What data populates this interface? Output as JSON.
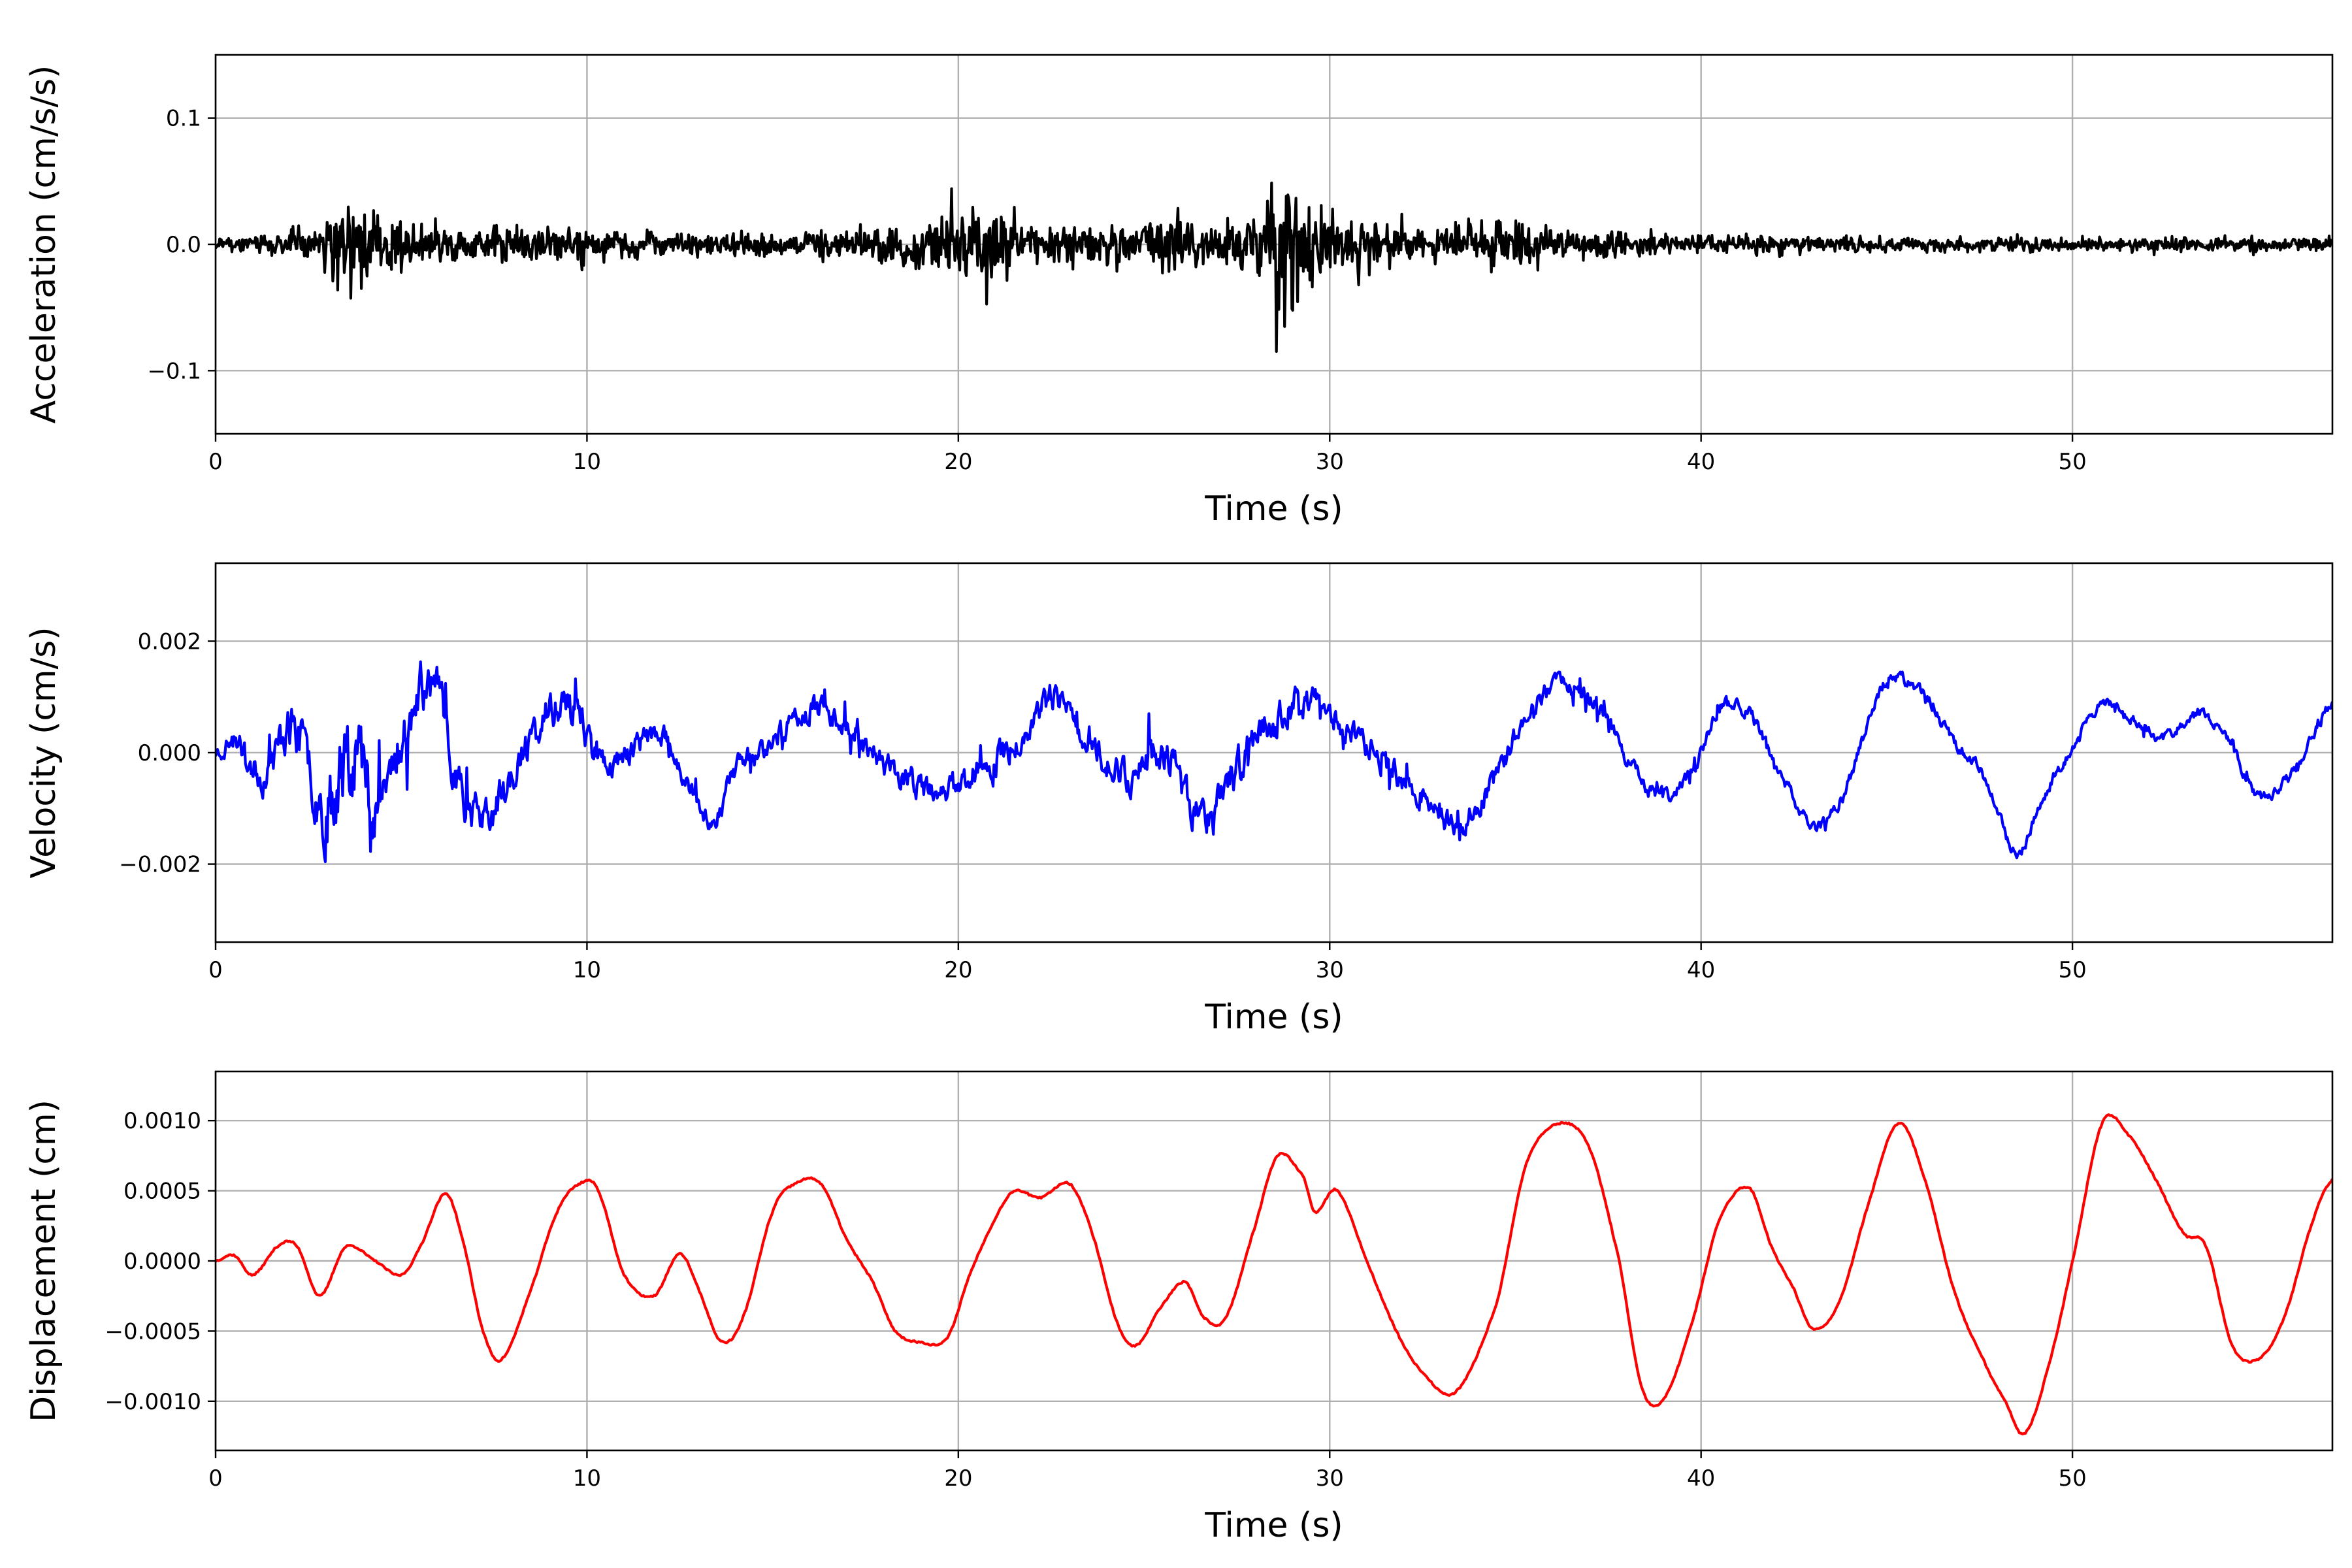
{
  "chart_data": [
    {
      "type": "line",
      "title": "",
      "xlabel": "Time (s)",
      "ylabel": "Acceleration (cm/s/s)",
      "xlim": [
        0,
        57
      ],
      "ylim": [
        -0.15,
        0.15
      ],
      "xticks": [
        0,
        10,
        20,
        30,
        40,
        50
      ],
      "yticks": [
        -0.1,
        0.0,
        0.1
      ],
      "ytick_labels": [
        "−0.1",
        "0.0",
        "0.1"
      ],
      "grid": true,
      "color": "#000000",
      "series_kind": "noise",
      "envelope": [
        [
          0,
          0.01
        ],
        [
          1.5,
          0.015
        ],
        [
          2.5,
          0.035
        ],
        [
          3.2,
          0.055
        ],
        [
          3.6,
          0.11
        ],
        [
          4.0,
          0.07
        ],
        [
          5.5,
          0.035
        ],
        [
          7.5,
          0.025
        ],
        [
          9.5,
          0.03
        ],
        [
          11,
          0.02
        ],
        [
          14,
          0.018
        ],
        [
          16,
          0.02
        ],
        [
          17.5,
          0.025
        ],
        [
          19.3,
          0.05
        ],
        [
          19.8,
          0.075
        ],
        [
          21.5,
          0.045
        ],
        [
          22.3,
          0.035
        ],
        [
          24,
          0.03
        ],
        [
          25.7,
          0.045
        ],
        [
          27,
          0.035
        ],
        [
          28.3,
          0.05
        ],
        [
          28.7,
          0.135
        ],
        [
          29.1,
          0.11
        ],
        [
          30,
          0.05
        ],
        [
          32,
          0.03
        ],
        [
          34,
          0.03
        ],
        [
          35.3,
          0.045
        ],
        [
          36,
          0.025
        ],
        [
          38,
          0.018
        ],
        [
          40,
          0.015
        ],
        [
          45,
          0.012
        ],
        [
          50,
          0.012
        ],
        [
          55,
          0.012
        ],
        [
          57,
          0.012
        ]
      ],
      "points": 2600,
      "seed": 11
    },
    {
      "type": "line",
      "title": "",
      "xlabel": "Time (s)",
      "ylabel": "Velocity (cm/s)",
      "xlim": [
        0,
        57
      ],
      "ylim": [
        -0.0034,
        0.0034
      ],
      "xticks": [
        0,
        10,
        20,
        30,
        40,
        50
      ],
      "yticks": [
        -0.002,
        0.0,
        0.002
      ],
      "ytick_labels": [
        "−0.002",
        "0.000",
        "0.002"
      ],
      "grid": true,
      "color": "#0000ff",
      "series_kind": "trend_noise",
      "trend": [
        [
          0,
          0
        ],
        [
          0.5,
          0.0002
        ],
        [
          1.3,
          -0.0004
        ],
        [
          2.0,
          0.0005
        ],
        [
          2.5,
          -0.0002
        ],
        [
          3.0,
          -0.001
        ],
        [
          3.6,
          0.0003
        ],
        [
          4.3,
          -0.0008
        ],
        [
          5.0,
          0.0002
        ],
        [
          5.8,
          0.0013
        ],
        [
          6.5,
          -0.0004
        ],
        [
          7.2,
          -0.0012
        ],
        [
          8.0,
          -0.0004
        ],
        [
          9.0,
          0.0007
        ],
        [
          9.6,
          0.0008
        ],
        [
          10.5,
          -0.0002
        ],
        [
          12.0,
          0.0003
        ],
        [
          13.3,
          -0.0012
        ],
        [
          14.0,
          -0.0003
        ],
        [
          15.0,
          0.0002
        ],
        [
          16.0,
          0.0008
        ],
        [
          17.0,
          0.0005
        ],
        [
          18.0,
          -0.0002
        ],
        [
          19.5,
          -0.0007
        ],
        [
          20.5,
          -0.0003
        ],
        [
          21.5,
          0.0001
        ],
        [
          22.5,
          0.0009
        ],
        [
          23.5,
          0.0003
        ],
        [
          24.5,
          -0.0004
        ],
        [
          25.5,
          0.0
        ],
        [
          26.5,
          -0.0011
        ],
        [
          27.5,
          -0.0003
        ],
        [
          28.5,
          0.0006
        ],
        [
          29.5,
          0.0009
        ],
        [
          30.5,
          0.0004
        ],
        [
          31.5,
          -0.0002
        ],
        [
          32.5,
          -0.0008
        ],
        [
          33.5,
          -0.0013
        ],
        [
          34.5,
          -0.0004
        ],
        [
          35.5,
          0.0009
        ],
        [
          36.5,
          0.0012
        ],
        [
          37.5,
          0.0006
        ],
        [
          38.2,
          -0.0003
        ],
        [
          39.0,
          -0.0008
        ],
        [
          39.8,
          -0.0003
        ],
        [
          40.5,
          0.0008
        ],
        [
          41.3,
          0.0007
        ],
        [
          42.0,
          -0.0002
        ],
        [
          43.0,
          -0.0013
        ],
        [
          43.8,
          -0.0008
        ],
        [
          44.5,
          0.0005
        ],
        [
          45.0,
          0.0013
        ],
        [
          46.0,
          0.0011
        ],
        [
          46.8,
          0.0002
        ],
        [
          47.6,
          -0.0004
        ],
        [
          48.5,
          -0.0018
        ],
        [
          49.2,
          -0.0008
        ],
        [
          50.0,
          0.0001
        ],
        [
          50.8,
          0.0009
        ],
        [
          51.5,
          0.0006
        ],
        [
          52.5,
          0.0003
        ],
        [
          53.5,
          0.0007
        ],
        [
          54.3,
          0.0001
        ],
        [
          55.0,
          -0.0008
        ],
        [
          56.0,
          -0.0003
        ],
        [
          57.0,
          0.0009
        ]
      ],
      "noise": [
        [
          0,
          0.0002
        ],
        [
          2.5,
          0.0006
        ],
        [
          3.6,
          0.0012
        ],
        [
          4.5,
          0.0007
        ],
        [
          6.0,
          0.0005
        ],
        [
          9.0,
          0.0004
        ],
        [
          12,
          0.00025
        ],
        [
          19,
          0.0003
        ],
        [
          28.5,
          0.00045
        ],
        [
          30,
          0.0003
        ],
        [
          35,
          0.00025
        ],
        [
          40,
          0.00015
        ],
        [
          57,
          0.00012
        ]
      ],
      "points": 2200,
      "seed": 23
    },
    {
      "type": "line",
      "title": "",
      "xlabel": "Time (s)",
      "ylabel": "Displacement (cm)",
      "xlim": [
        0,
        57
      ],
      "ylim": [
        -0.00135,
        0.00135
      ],
      "xticks": [
        0,
        10,
        20,
        30,
        40,
        50
      ],
      "yticks": [
        -0.001,
        -0.0005,
        0.0,
        0.0005,
        0.001
      ],
      "ytick_labels": [
        "−0.0010",
        "−0.0005",
        "0.0000",
        "0.0005",
        "0.0010"
      ],
      "grid": true,
      "color": "#ff0000",
      "series_kind": "smooth",
      "points_xy": [
        [
          0,
          0
        ],
        [
          0.5,
          4e-05
        ],
        [
          1.0,
          -0.0001
        ],
        [
          1.7,
          0.00011
        ],
        [
          2.2,
          0.0001
        ],
        [
          2.8,
          -0.00025
        ],
        [
          3.5,
          0.0001
        ],
        [
          4.3,
          0.0
        ],
        [
          5.0,
          -0.0001
        ],
        [
          5.5,
          0.0001
        ],
        [
          6.2,
          0.00048
        ],
        [
          6.7,
          0.0001
        ],
        [
          7.2,
          -0.0005
        ],
        [
          7.7,
          -0.0007
        ],
        [
          8.5,
          -0.0002
        ],
        [
          9.2,
          0.00035
        ],
        [
          9.8,
          0.00055
        ],
        [
          10.3,
          0.0005
        ],
        [
          11.0,
          -0.0001
        ],
        [
          11.8,
          -0.00025
        ],
        [
          12.5,
          5e-05
        ],
        [
          13.0,
          -0.0002
        ],
        [
          13.6,
          -0.00057
        ],
        [
          14.2,
          -0.0004
        ],
        [
          15.0,
          0.00035
        ],
        [
          15.6,
          0.00055
        ],
        [
          16.3,
          0.00055
        ],
        [
          17.0,
          0.00015
        ],
        [
          17.7,
          -0.00015
        ],
        [
          18.3,
          -0.0005
        ],
        [
          19.0,
          -0.00058
        ],
        [
          19.7,
          -0.00055
        ],
        [
          20.3,
          -0.0001
        ],
        [
          21.0,
          0.0003
        ],
        [
          21.5,
          0.0005
        ],
        [
          22.2,
          0.00045
        ],
        [
          23.0,
          0.00055
        ],
        [
          23.6,
          0.0002
        ],
        [
          24.3,
          -0.00045
        ],
        [
          24.8,
          -0.0006
        ],
        [
          25.4,
          -0.00035
        ],
        [
          26.1,
          -0.00015
        ],
        [
          26.6,
          -0.0004
        ],
        [
          27.2,
          -0.0004
        ],
        [
          28.0,
          0.00025
        ],
        [
          28.6,
          0.00075
        ],
        [
          29.3,
          0.0006
        ],
        [
          29.6,
          0.00035
        ],
        [
          30.2,
          0.0005
        ],
        [
          31.0,
          0.0
        ],
        [
          31.8,
          -0.0005
        ],
        [
          32.5,
          -0.0008
        ],
        [
          33.4,
          -0.00093
        ],
        [
          34.5,
          -0.0003
        ],
        [
          35.3,
          0.0007
        ],
        [
          36.2,
          0.00098
        ],
        [
          37.0,
          0.0008
        ],
        [
          37.8,
          0.0
        ],
        [
          38.4,
          -0.0009
        ],
        [
          39.0,
          -0.00098
        ],
        [
          39.8,
          -0.0004
        ],
        [
          40.5,
          0.0003
        ],
        [
          41.3,
          0.00052
        ],
        [
          41.9,
          0.0001
        ],
        [
          42.5,
          -0.0002
        ],
        [
          43.0,
          -0.00048
        ],
        [
          43.7,
          -0.0003
        ],
        [
          44.5,
          0.0004
        ],
        [
          45.3,
          0.00098
        ],
        [
          46.0,
          0.0006
        ],
        [
          46.8,
          -0.0002
        ],
        [
          47.6,
          -0.0007
        ],
        [
          48.2,
          -0.001
        ],
        [
          48.7,
          -0.00123
        ],
        [
          49.3,
          -0.0008
        ],
        [
          50.0,
          0.0
        ],
        [
          50.8,
          0.00098
        ],
        [
          51.5,
          0.0009
        ],
        [
          52.2,
          0.0006
        ],
        [
          53.0,
          0.0002
        ],
        [
          53.6,
          0.0001
        ],
        [
          54.3,
          -0.0006
        ],
        [
          55.0,
          -0.0007
        ],
        [
          55.7,
          -0.0004
        ],
        [
          56.5,
          0.0003
        ],
        [
          57.0,
          0.00058
        ]
      ],
      "points": 1400,
      "seed": 37
    }
  ]
}
